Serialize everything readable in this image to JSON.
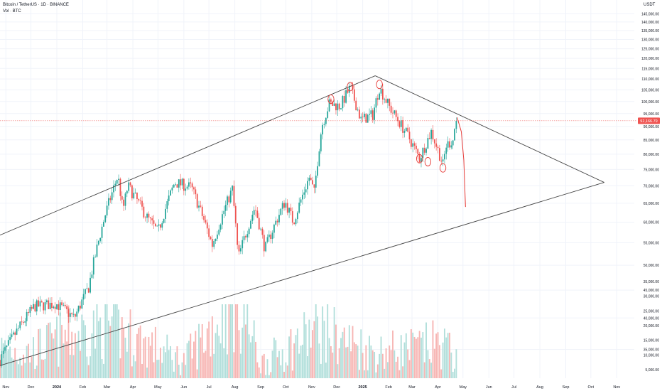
{
  "header": {
    "symbol_title": "Bitcoin / TetherUS · 1D · BINANCE",
    "volume_label": "Vol · BTC",
    "currency": "USDT"
  },
  "colors": {
    "up": "#26a69a",
    "down": "#ef5350",
    "vol_up": "#b2dfdb",
    "vol_down": "#f7b5b3",
    "trendline": "#454545",
    "annotation": "#e53935",
    "price_tag": "#ef5350",
    "axis_text": "#131722",
    "grid": "#f0f3fa"
  },
  "chart_data": {
    "type": "candlestick",
    "title": "Bitcoin / TetherUS · 1D · BINANCE",
    "price_axis": {
      "scale": "log",
      "range": [
        31000,
        150000
      ],
      "ticks": [
        "145,000.00",
        "140,000.00",
        "135,000.00",
        "130,000.00",
        "125,000.00",
        "120,000.00",
        "115,000.00",
        "110,000.00",
        "105,000.00",
        "100,000.00",
        "95,000.00",
        "90,000.00",
        "85,000.00",
        "80,000.00",
        "75,000.00",
        "70,000.00",
        "65,000.00",
        "60,000.00",
        "55,000.00",
        "50,000.00",
        "45,000.00",
        "40,000.00",
        "35,000.00"
      ],
      "tick_values": [
        145000,
        140000,
        135000,
        130000,
        125000,
        120000,
        115000,
        110000,
        105000,
        100000,
        95000,
        90000,
        85000,
        80000,
        75000,
        70000,
        65000,
        60000,
        55000,
        50000,
        45000,
        40000,
        35000
      ]
    },
    "volume_axis": {
      "unit": "BTC",
      "ticks": [
        "35,000.00",
        "30,000.00",
        "25,000.00",
        "20,000.00",
        "15,000.00",
        "10,000.00",
        "5,000.00"
      ],
      "tick_values": [
        35000,
        30000,
        25000,
        20000,
        15000,
        10000,
        5000
      ]
    },
    "time_axis": {
      "range": [
        "2023-10-25",
        "2025-11-22"
      ],
      "ticks": [
        "Nov",
        "Dec",
        "2024",
        "Feb",
        "Mar",
        "Apr",
        "May",
        "Jun",
        "Jul",
        "Aug",
        "Sep",
        "Oct",
        "Nov",
        "Dec",
        "2025",
        "Feb",
        "Mar",
        "Apr",
        "May",
        "Jun",
        "Jul",
        "Aug",
        "Sep",
        "Oct",
        "Nov"
      ],
      "tick_dates": [
        "2023-11-01",
        "2023-12-01",
        "2024-01-01",
        "2024-02-01",
        "2024-03-01",
        "2024-04-01",
        "2024-05-01",
        "2024-06-01",
        "2024-07-01",
        "2024-08-01",
        "2024-09-01",
        "2024-10-01",
        "2024-11-01",
        "2024-12-01",
        "2025-01-01",
        "2025-02-01",
        "2025-03-01",
        "2025-04-01",
        "2025-05-01",
        "2025-06-01",
        "2025-07-01",
        "2025-08-01",
        "2025-09-01",
        "2025-10-01",
        "2025-11-01"
      ]
    },
    "last_price": "92,166.79",
    "last_price_value": 92166.79,
    "price_path": [
      [
        "2023-10-25",
        33500
      ],
      [
        "2023-11-10",
        37000
      ],
      [
        "2023-12-05",
        42000
      ],
      [
        "2023-12-31",
        42500
      ],
      [
        "2024-01-22",
        40000
      ],
      [
        "2024-02-08",
        45500
      ],
      [
        "2024-02-28",
        62000
      ],
      [
        "2024-03-14",
        73000
      ],
      [
        "2024-03-20",
        63000
      ],
      [
        "2024-03-26",
        70000
      ],
      [
        "2024-04-17",
        61500
      ],
      [
        "2024-05-01",
        57500
      ],
      [
        "2024-05-21",
        71000
      ],
      [
        "2024-06-10",
        69500
      ],
      [
        "2024-07-05",
        54500
      ],
      [
        "2024-07-29",
        69000
      ],
      [
        "2024-08-05",
        51500
      ],
      [
        "2024-08-25",
        64000
      ],
      [
        "2024-09-06",
        53500
      ],
      [
        "2024-09-30",
        65500
      ],
      [
        "2024-10-10",
        60000
      ],
      [
        "2024-10-29",
        72500
      ],
      [
        "2024-11-04",
        68000
      ],
      [
        "2024-11-13",
        90000
      ],
      [
        "2024-11-22",
        99000
      ],
      [
        "2024-12-05",
        98000
      ],
      [
        "2024-12-17",
        106000
      ],
      [
        "2024-12-30",
        92500
      ],
      [
        "2025-01-13",
        94500
      ],
      [
        "2025-01-21",
        106000
      ],
      [
        "2025-02-03",
        97000
      ],
      [
        "2025-02-25",
        86000
      ],
      [
        "2025-03-10",
        78500
      ],
      [
        "2025-03-24",
        88000
      ],
      [
        "2025-04-07",
        76500
      ],
      [
        "2025-04-11",
        83000
      ],
      [
        "2025-04-19",
        85000
      ],
      [
        "2025-04-23",
        93500
      ],
      [
        "2025-04-24",
        92166.79
      ]
    ],
    "volume_path": [
      [
        "2023-10-25",
        12000
      ],
      [
        "2023-12-01",
        11000
      ],
      [
        "2024-01-10",
        16000
      ],
      [
        "2024-03-05",
        20000
      ],
      [
        "2024-04-15",
        14000
      ],
      [
        "2024-06-01",
        8000
      ],
      [
        "2024-08-05",
        30000
      ],
      [
        "2024-09-01",
        7000
      ],
      [
        "2024-11-12",
        19000
      ],
      [
        "2024-12-10",
        15000
      ],
      [
        "2025-01-15",
        11000
      ],
      [
        "2025-03-01",
        12000
      ],
      [
        "2025-04-07",
        14000
      ],
      [
        "2025-04-24",
        8000
      ]
    ],
    "trendlines": [
      {
        "from": [
          "2023-10-25",
          56800
        ],
        "to": [
          "2025-01-16",
          111500
        ]
      },
      {
        "from": [
          "2025-01-16",
          111500
        ],
        "to": [
          "2025-10-17",
          71000
        ]
      },
      {
        "from": [
          "2023-10-25",
          32700
        ],
        "to": [
          "2025-10-17",
          71000
        ]
      }
    ],
    "projection": [
      [
        "2025-04-24",
        93500
      ],
      [
        "2025-04-29",
        88000
      ],
      [
        "2025-05-02",
        78000
      ],
      [
        "2025-05-04",
        64000
      ]
    ]
  }
}
